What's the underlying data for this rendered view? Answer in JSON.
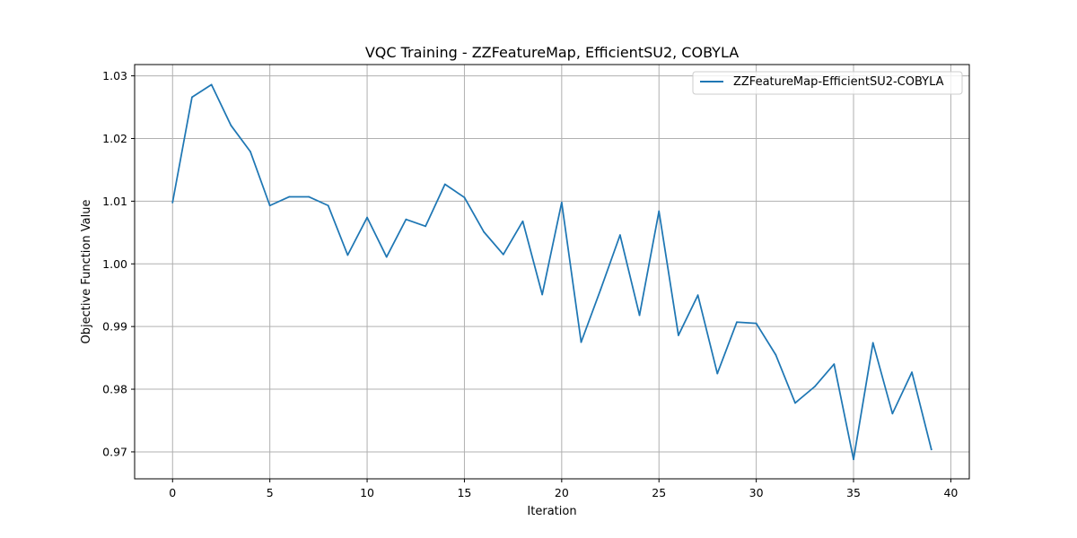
{
  "chart_data": {
    "type": "line",
    "title": "VQC Training - ZZFeatureMap, EfficientSU2, COBYLA",
    "xlabel": "Iteration",
    "ylabel": "Objective Function Value",
    "xlim": [
      -1.95,
      40.95
    ],
    "ylim": [
      0.9657,
      1.0318
    ],
    "xticks": [
      0,
      5,
      10,
      15,
      20,
      25,
      30,
      35,
      40
    ],
    "xtick_labels": [
      "0",
      "5",
      "10",
      "15",
      "20",
      "25",
      "30",
      "35",
      "40"
    ],
    "yticks": [
      0.97,
      0.98,
      0.99,
      1.0,
      1.01,
      1.02,
      1.03
    ],
    "ytick_labels": [
      "0.97",
      "0.98",
      "0.99",
      "1.00",
      "1.01",
      "1.02",
      "1.03"
    ],
    "grid": true,
    "legend_position": "top-right",
    "series": [
      {
        "name": "ZZFeatureMap-EfficientSU2-COBYLA",
        "color": "#1f77b4",
        "x": [
          0,
          1,
          2,
          3,
          4,
          5,
          6,
          7,
          8,
          9,
          10,
          11,
          12,
          13,
          14,
          15,
          16,
          17,
          18,
          19,
          20,
          21,
          22,
          23,
          24,
          25,
          26,
          27,
          28,
          29,
          30,
          31,
          32,
          33,
          34,
          35,
          36,
          37,
          38,
          39
        ],
        "values": [
          1.0098,
          1.0266,
          1.0286,
          1.0221,
          1.0179,
          1.0093,
          1.0107,
          1.0107,
          1.0093,
          1.0014,
          1.0074,
          1.0011,
          1.0071,
          1.006,
          1.0127,
          1.0106,
          1.0051,
          1.0015,
          1.0068,
          0.9951,
          1.0098,
          0.9875,
          0.9959,
          1.0046,
          0.9918,
          1.0084,
          0.9886,
          0.995,
          0.9825,
          0.9907,
          0.9905,
          0.9855,
          0.9778,
          0.9804,
          0.984,
          0.9688,
          0.9874,
          0.9761,
          0.9827,
          0.9704
        ]
      }
    ]
  }
}
